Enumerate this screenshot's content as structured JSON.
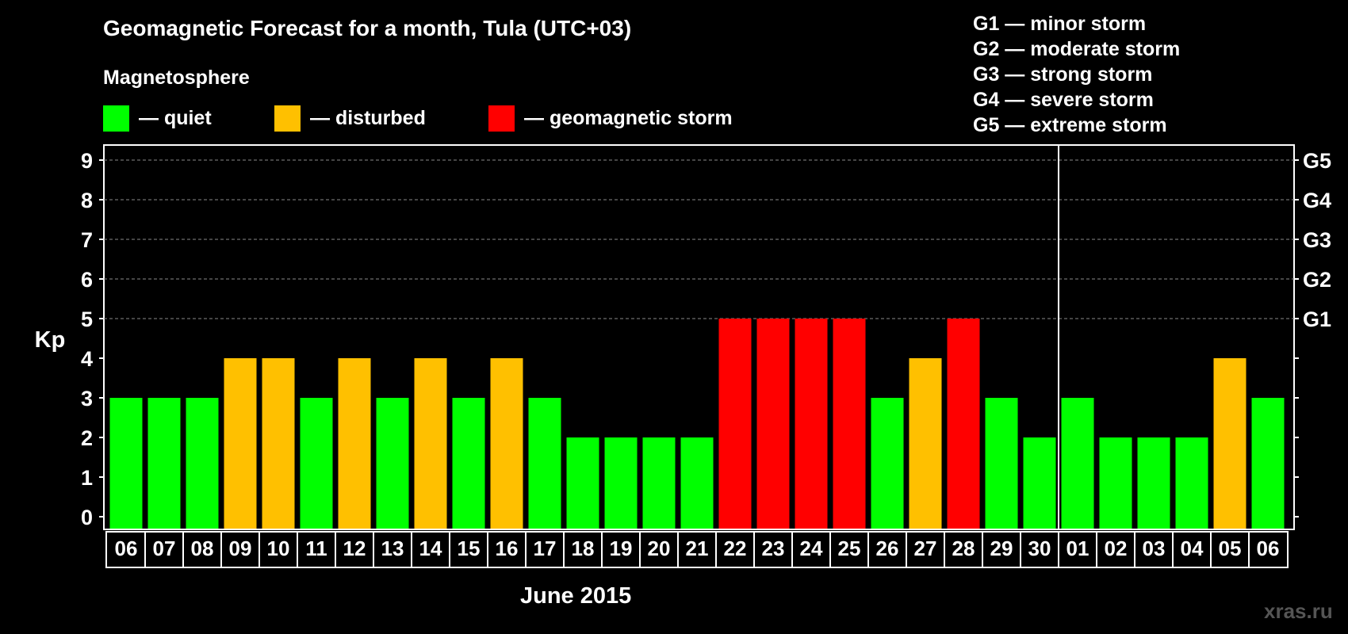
{
  "title": "Geomagnetic Forecast for a month, Tula (UTC+03)",
  "subtitle": "Magnetosphere",
  "legend": {
    "quiet": "— quiet",
    "disturbed": "— disturbed",
    "storm": "— geomagnetic storm"
  },
  "storm_legend": [
    "G1 — minor storm",
    "G2 — moderate storm",
    "G3 — strong storm",
    "G4 — severe storm",
    "G5 — extreme storm"
  ],
  "colors": {
    "quiet": "#00ff00",
    "disturbed": "#ffc000",
    "storm": "#ff0000",
    "background": "#000000",
    "axis": "#ffffff"
  },
  "watermark": "xras.ru",
  "chart_data": {
    "type": "bar",
    "title": "Geomagnetic Forecast for a month, Tula (UTC+03)",
    "xlabel": "June 2015",
    "ylabel": "Kp",
    "ylim": [
      0,
      9
    ],
    "yticks": [
      0,
      1,
      2,
      3,
      4,
      5,
      6,
      7,
      8,
      9
    ],
    "grid": "horizontal dashed at 5-9",
    "right_axis_labels": [
      {
        "kp": 5,
        "label": "G1"
      },
      {
        "kp": 6,
        "label": "G2"
      },
      {
        "kp": 7,
        "label": "G3"
      },
      {
        "kp": 8,
        "label": "G4"
      },
      {
        "kp": 9,
        "label": "G5"
      }
    ],
    "month_divider_after": "30",
    "categories": [
      "06",
      "07",
      "08",
      "09",
      "10",
      "11",
      "12",
      "13",
      "14",
      "15",
      "16",
      "17",
      "18",
      "19",
      "20",
      "21",
      "22",
      "23",
      "24",
      "25",
      "26",
      "27",
      "28",
      "29",
      "30",
      "01",
      "02",
      "03",
      "04",
      "05",
      "06"
    ],
    "values": [
      3,
      3,
      3,
      4,
      4,
      3,
      4,
      3,
      4,
      3,
      4,
      3,
      2,
      2,
      2,
      2,
      5,
      5,
      5,
      5,
      3,
      4,
      5,
      3,
      2,
      3,
      2,
      2,
      2,
      4,
      3
    ],
    "status": [
      "quiet",
      "quiet",
      "quiet",
      "disturbed",
      "disturbed",
      "quiet",
      "disturbed",
      "quiet",
      "disturbed",
      "quiet",
      "disturbed",
      "quiet",
      "quiet",
      "quiet",
      "quiet",
      "quiet",
      "storm",
      "storm",
      "storm",
      "storm",
      "quiet",
      "disturbed",
      "storm",
      "quiet",
      "quiet",
      "quiet",
      "quiet",
      "quiet",
      "quiet",
      "disturbed",
      "quiet"
    ]
  }
}
